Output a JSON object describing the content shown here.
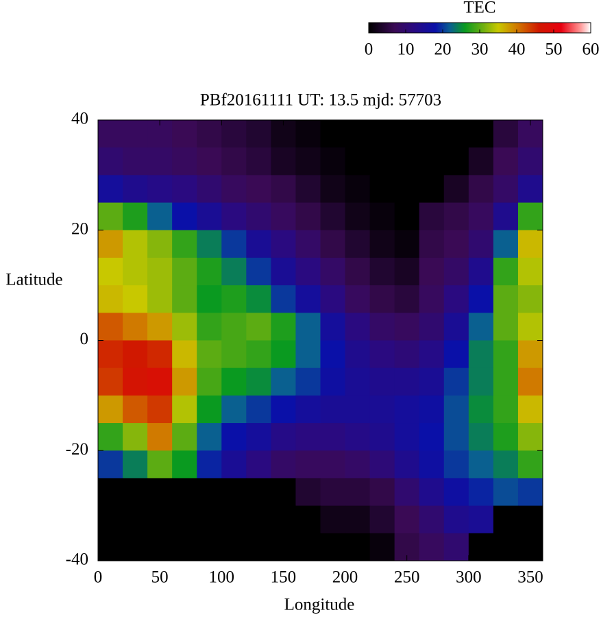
{
  "chart_data": {
    "type": "heatmap",
    "title": "PBf20161111  UT: 13.5  mjd: 57703",
    "x_label": "Longitude",
    "y_label": "Latitude",
    "colorbar_title": "TEC",
    "x": [
      10,
      30,
      50,
      70,
      90,
      110,
      130,
      150,
      170,
      190,
      210,
      230,
      250,
      270,
      290,
      310,
      330,
      350
    ],
    "y": [
      37.5,
      32.5,
      27.5,
      22.5,
      17.5,
      12.5,
      7.5,
      2.5,
      -2.5,
      -7.5,
      -12.5,
      -17.5,
      -22.5,
      -27.5,
      -32.5,
      -37.5
    ],
    "z": [
      [
        8,
        8,
        8,
        7,
        6,
        5,
        4,
        2,
        1,
        0,
        0,
        0,
        0,
        0,
        0,
        0,
        5,
        8
      ],
      [
        10,
        9,
        9,
        8,
        7,
        6,
        5,
        3,
        2,
        1,
        0,
        0,
        0,
        0,
        0,
        3,
        7,
        10
      ],
      [
        16,
        14,
        13,
        12,
        10,
        8,
        7,
        6,
        4,
        2,
        1,
        0,
        0,
        0,
        3,
        6,
        9,
        14
      ],
      [
        30,
        27,
        22,
        18,
        15,
        12,
        10,
        8,
        6,
        4,
        2,
        1,
        0,
        5,
        6,
        8,
        14,
        28
      ],
      [
        38,
        34,
        32,
        28,
        24,
        20,
        15,
        12,
        9,
        6,
        4,
        2,
        1,
        6,
        7,
        10,
        22,
        36
      ],
      [
        35,
        34,
        33,
        30,
        27,
        24,
        20,
        15,
        12,
        9,
        6,
        4,
        3,
        7,
        9,
        14,
        28,
        34
      ],
      [
        36,
        35,
        33,
        30,
        26,
        27,
        25,
        20,
        16,
        12,
        8,
        6,
        5,
        8,
        12,
        18,
        30,
        32
      ],
      [
        42,
        40,
        38,
        33,
        28,
        29,
        30,
        27,
        22,
        16,
        12,
        9,
        8,
        10,
        15,
        22,
        30,
        34
      ],
      [
        45,
        46,
        45,
        36,
        30,
        29,
        28,
        26,
        22,
        18,
        14,
        12,
        11,
        13,
        18,
        24,
        28,
        38
      ],
      [
        44,
        47,
        48,
        38,
        29,
        26,
        25,
        22,
        20,
        17,
        15,
        14,
        14,
        15,
        20,
        24,
        28,
        40
      ],
      [
        38,
        42,
        44,
        34,
        26,
        22,
        20,
        18,
        16,
        15,
        15,
        15,
        16,
        17,
        21,
        25,
        28,
        36
      ],
      [
        28,
        32,
        40,
        30,
        22,
        18,
        16,
        13,
        12,
        12,
        13,
        14,
        16,
        18,
        21,
        24,
        27,
        32
      ],
      [
        20,
        24,
        30,
        26,
        19,
        15,
        12,
        9,
        8,
        8,
        9,
        11,
        14,
        17,
        20,
        22,
        24,
        28
      ],
      [
        0,
        0,
        0,
        0,
        0,
        0,
        0,
        0,
        4,
        5,
        5,
        6,
        10,
        14,
        17,
        19,
        21,
        20
      ],
      [
        0,
        0,
        0,
        0,
        0,
        0,
        0,
        0,
        0,
        2,
        2,
        4,
        7,
        10,
        14,
        15,
        0,
        0
      ],
      [
        0,
        0,
        0,
        0,
        0,
        0,
        0,
        0,
        0,
        0,
        0,
        1,
        6,
        8,
        10,
        0,
        0,
        0
      ]
    ],
    "xlim": [
      0,
      360
    ],
    "ylim": [
      -40,
      40
    ],
    "xticks": [
      0,
      50,
      100,
      150,
      200,
      250,
      300,
      350
    ],
    "yticks": [
      -40,
      -20,
      0,
      20,
      40
    ],
    "clim": [
      0,
      60
    ],
    "cticks": [
      0,
      10,
      20,
      30,
      40,
      50,
      60
    ],
    "colorscale": [
      [
        0,
        "#000000"
      ],
      [
        7,
        "#3a0a55"
      ],
      [
        12,
        "#2a0a80"
      ],
      [
        18,
        "#0a10a8"
      ],
      [
        22,
        "#0a6090"
      ],
      [
        26,
        "#0a9a20"
      ],
      [
        31,
        "#70b010"
      ],
      [
        35,
        "#c8c800"
      ],
      [
        40,
        "#d07a00"
      ],
      [
        46,
        "#d01800"
      ],
      [
        52,
        "#e80010"
      ],
      [
        57,
        "#ff9090"
      ],
      [
        60,
        "#ffffff"
      ]
    ]
  }
}
